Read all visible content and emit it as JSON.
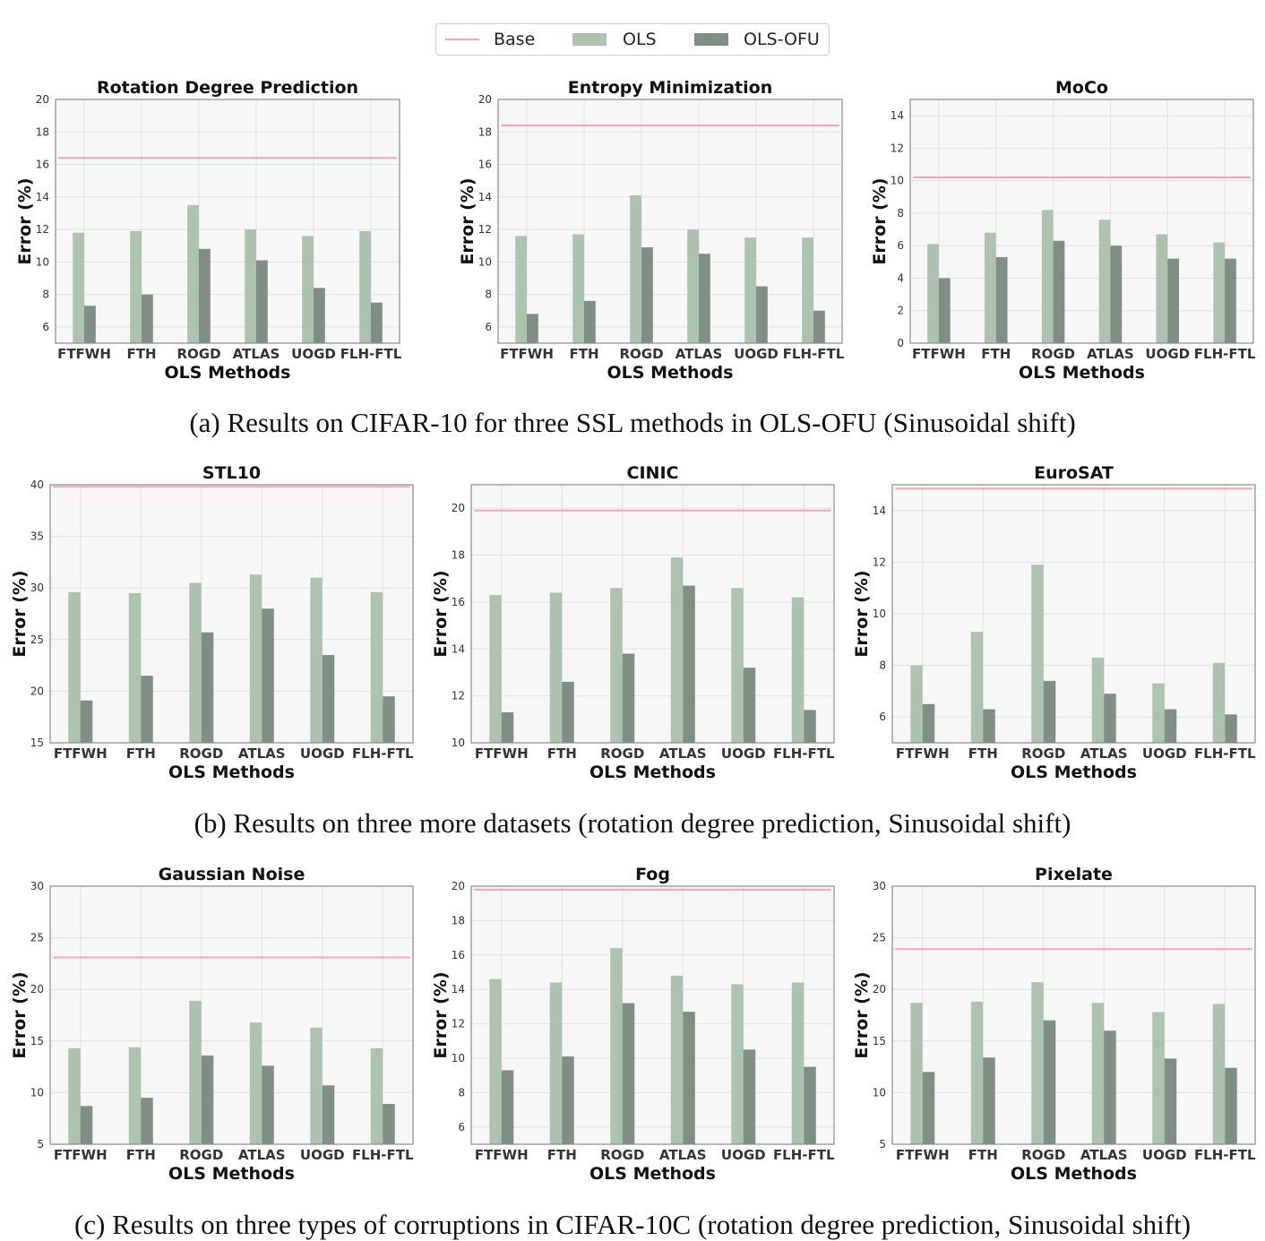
{
  "legend": {
    "items": [
      {
        "label": "Base",
        "color": "#f4a7b0",
        "kind": "line"
      },
      {
        "label": "OLS",
        "color": "#adc3af",
        "kind": "bar"
      },
      {
        "label": "OLS-OFU",
        "color": "#7f8f84",
        "kind": "bar"
      }
    ]
  },
  "captions": {
    "a": "(a) Results on CIFAR-10 for three SSL methods in OLS-OFU (Sinusoidal shift)",
    "b": "(b) Results on three more datasets (rotation degree prediction, Sinusoidal shift)",
    "c": "(c) Results on three types of corruptions in CIFAR-10C (rotation degree prediction, Sinusoidal shift)"
  },
  "colors": {
    "base": "#f4a7b0",
    "ols": "#adc3af",
    "ofu": "#7f8f84",
    "plot_bg": "#f7f7f7",
    "grid": "#e2e2e2",
    "frame": "#8a8a8a"
  },
  "chart_data": [
    {
      "type": "bar",
      "title": "Rotation Degree Prediction",
      "xlabel": "OLS Methods",
      "ylabel": "Error (%)",
      "categories": [
        "FTFWH",
        "FTH",
        "ROGD",
        "ATLAS",
        "UOGD",
        "FLH-FTL"
      ],
      "ylim": [
        5,
        20
      ],
      "yticks": [
        6,
        8,
        10,
        12,
        14,
        16,
        18,
        20
      ],
      "base": 16.4,
      "series": [
        {
          "name": "OLS",
          "values": [
            11.8,
            11.9,
            13.5,
            12.0,
            11.6,
            11.9
          ]
        },
        {
          "name": "OLS-OFU",
          "values": [
            7.3,
            8.0,
            10.8,
            10.1,
            8.4,
            7.5
          ]
        }
      ]
    },
    {
      "type": "bar",
      "title": "Entropy Minimization",
      "xlabel": "OLS Methods",
      "ylabel": "Error (%)",
      "categories": [
        "FTFWH",
        "FTH",
        "ROGD",
        "ATLAS",
        "UOGD",
        "FLH-FTL"
      ],
      "ylim": [
        5,
        20
      ],
      "yticks": [
        6,
        8,
        10,
        12,
        14,
        16,
        18,
        20
      ],
      "base": 18.4,
      "series": [
        {
          "name": "OLS",
          "values": [
            11.6,
            11.7,
            14.1,
            12.0,
            11.5,
            11.5
          ]
        },
        {
          "name": "OLS-OFU",
          "values": [
            6.8,
            7.6,
            10.9,
            10.5,
            8.5,
            7.0
          ]
        }
      ]
    },
    {
      "type": "bar",
      "title": "MoCo",
      "xlabel": "OLS Methods",
      "ylabel": "Error (%)",
      "categories": [
        "FTFWH",
        "FTH",
        "ROGD",
        "ATLAS",
        "UOGD",
        "FLH-FTL"
      ],
      "ylim": [
        0,
        15
      ],
      "yticks": [
        0,
        2,
        4,
        6,
        8,
        10,
        12,
        14
      ],
      "base": 10.2,
      "series": [
        {
          "name": "OLS",
          "values": [
            6.1,
            6.8,
            8.2,
            7.6,
            6.7,
            6.2
          ]
        },
        {
          "name": "OLS-OFU",
          "values": [
            4.0,
            5.3,
            6.3,
            6.0,
            5.2,
            5.2
          ]
        }
      ]
    },
    {
      "type": "bar",
      "title": "STL10",
      "xlabel": "OLS Methods",
      "ylabel": "Error (%)",
      "categories": [
        "FTFWH",
        "FTH",
        "ROGD",
        "ATLAS",
        "UOGD",
        "FLH-FTL"
      ],
      "ylim": [
        15,
        40
      ],
      "yticks": [
        15,
        20,
        25,
        30,
        35,
        40
      ],
      "base": 39.8,
      "series": [
        {
          "name": "OLS",
          "values": [
            29.6,
            29.5,
            30.5,
            31.3,
            31.0,
            29.6
          ]
        },
        {
          "name": "OLS-OFU",
          "values": [
            19.1,
            21.5,
            25.7,
            28.0,
            23.5,
            19.5
          ]
        }
      ]
    },
    {
      "type": "bar",
      "title": "CINIC",
      "xlabel": "OLS Methods",
      "ylabel": "Error (%)",
      "categories": [
        "FTFWH",
        "FTH",
        "ROGD",
        "ATLAS",
        "UOGD",
        "FLH-FTL"
      ],
      "ylim": [
        10,
        21
      ],
      "yticks": [
        10,
        12,
        14,
        16,
        18,
        20
      ],
      "base": 19.9,
      "series": [
        {
          "name": "OLS",
          "values": [
            16.3,
            16.4,
            16.6,
            17.9,
            16.6,
            16.2
          ]
        },
        {
          "name": "OLS-OFU",
          "values": [
            11.3,
            12.6,
            13.8,
            16.7,
            13.2,
            11.4
          ]
        }
      ]
    },
    {
      "type": "bar",
      "title": "EuroSAT",
      "xlabel": "OLS Methods",
      "ylabel": "Error (%)",
      "categories": [
        "FTFWH",
        "FTH",
        "ROGD",
        "ATLAS",
        "UOGD",
        "FLH-FTL"
      ],
      "ylim": [
        5,
        15
      ],
      "yticks": [
        6,
        8,
        10,
        12,
        14
      ],
      "base": 14.85,
      "series": [
        {
          "name": "OLS",
          "values": [
            8.0,
            9.3,
            11.9,
            8.3,
            7.3,
            8.1
          ]
        },
        {
          "name": "OLS-OFU",
          "values": [
            6.5,
            6.3,
            7.4,
            6.9,
            6.3,
            6.1
          ]
        }
      ]
    },
    {
      "type": "bar",
      "title": "Gaussian Noise",
      "xlabel": "OLS Methods",
      "ylabel": "Error (%)",
      "categories": [
        "FTFWH",
        "FTH",
        "ROGD",
        "ATLAS",
        "UOGD",
        "FLH-FTL"
      ],
      "ylim": [
        5,
        30
      ],
      "yticks": [
        5,
        10,
        15,
        20,
        25,
        30
      ],
      "base": 23.1,
      "series": [
        {
          "name": "OLS",
          "values": [
            14.3,
            14.4,
            18.9,
            16.8,
            16.3,
            14.3
          ]
        },
        {
          "name": "OLS-OFU",
          "values": [
            8.7,
            9.5,
            13.6,
            12.6,
            10.7,
            8.9
          ]
        }
      ]
    },
    {
      "type": "bar",
      "title": "Fog",
      "xlabel": "OLS Methods",
      "ylabel": "Error (%)",
      "categories": [
        "FTFWH",
        "FTH",
        "ROGD",
        "ATLAS",
        "UOGD",
        "FLH-FTL"
      ],
      "ylim": [
        5,
        20
      ],
      "yticks": [
        6,
        8,
        10,
        12,
        14,
        16,
        18,
        20
      ],
      "base": 19.8,
      "series": [
        {
          "name": "OLS",
          "values": [
            14.6,
            14.4,
            16.4,
            14.8,
            14.3,
            14.4
          ]
        },
        {
          "name": "OLS-OFU",
          "values": [
            9.3,
            10.1,
            13.2,
            12.7,
            10.5,
            9.5
          ]
        }
      ]
    },
    {
      "type": "bar",
      "title": "Pixelate",
      "xlabel": "OLS Methods",
      "ylabel": "Error (%)",
      "categories": [
        "FTFWH",
        "FTH",
        "ROGD",
        "ATLAS",
        "UOGD",
        "FLH-FTL"
      ],
      "ylim": [
        5,
        30
      ],
      "yticks": [
        5,
        10,
        15,
        20,
        25,
        30
      ],
      "base": 23.9,
      "series": [
        {
          "name": "OLS",
          "values": [
            18.7,
            18.8,
            20.7,
            18.7,
            17.8,
            18.6
          ]
        },
        {
          "name": "OLS-OFU",
          "values": [
            12.0,
            13.4,
            17.0,
            16.0,
            13.3,
            12.4
          ]
        }
      ]
    }
  ]
}
